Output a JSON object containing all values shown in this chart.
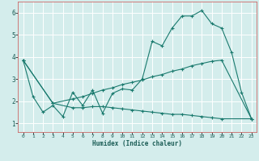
{
  "xlabel": "Humidex (Indice chaleur)",
  "background_color": "#d4edec",
  "grid_color": "#ffffff",
  "line_color": "#1a7a6e",
  "x_ticks": [
    0,
    1,
    2,
    3,
    4,
    5,
    6,
    7,
    8,
    9,
    10,
    11,
    12,
    13,
    14,
    15,
    16,
    17,
    18,
    19,
    20,
    21,
    22,
    23
  ],
  "y_ticks": [
    1,
    2,
    3,
    4,
    5,
    6
  ],
  "ylim": [
    0.6,
    6.5
  ],
  "xlim": [
    -0.5,
    23.5
  ],
  "line1_x": [
    0,
    1,
    2,
    3,
    4,
    5,
    6,
    7,
    8,
    9,
    10,
    11,
    12,
    13,
    14,
    15,
    16,
    17,
    18,
    19,
    20,
    21,
    22,
    23
  ],
  "line1_y": [
    3.85,
    2.2,
    1.5,
    1.8,
    1.3,
    2.4,
    1.8,
    2.5,
    1.45,
    2.35,
    2.55,
    2.5,
    3.0,
    4.7,
    4.5,
    5.3,
    5.85,
    5.85,
    6.1,
    5.5,
    5.3,
    4.2,
    2.4,
    1.2
  ],
  "line2_x": [
    0,
    3,
    5,
    6,
    7,
    8,
    9,
    10,
    11,
    12,
    13,
    14,
    15,
    16,
    17,
    18,
    19,
    20,
    23
  ],
  "line2_y": [
    3.85,
    1.9,
    2.1,
    2.2,
    2.35,
    2.5,
    2.6,
    2.75,
    2.85,
    2.95,
    3.1,
    3.2,
    3.35,
    3.45,
    3.6,
    3.7,
    3.8,
    3.85,
    1.2
  ],
  "line3_x": [
    0,
    3,
    5,
    6,
    7,
    8,
    9,
    10,
    11,
    12,
    13,
    14,
    15,
    16,
    17,
    18,
    19,
    20,
    23
  ],
  "line3_y": [
    3.85,
    1.9,
    1.7,
    1.7,
    1.75,
    1.75,
    1.7,
    1.65,
    1.6,
    1.55,
    1.5,
    1.45,
    1.4,
    1.4,
    1.35,
    1.3,
    1.25,
    1.2,
    1.2
  ]
}
